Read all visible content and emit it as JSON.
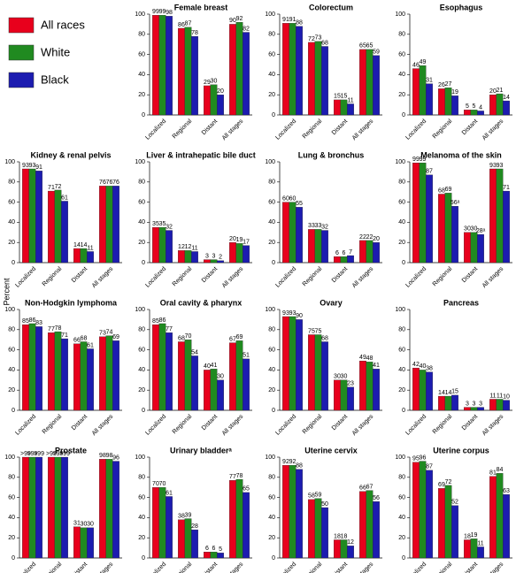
{
  "ylabel": "Percent",
  "chart_data": [
    {
      "type": "bar",
      "title": "Female breast",
      "categories": [
        "Localized",
        "Regional",
        "Distant",
        "All stages"
      ],
      "ylim": [
        0,
        100
      ],
      "yticks": [
        0,
        20,
        40,
        60,
        80,
        100
      ],
      "series": [
        {
          "name": "All races",
          "color": "#e8001c",
          "values": [
            99,
            86,
            29,
            90
          ]
        },
        {
          "name": "White",
          "color": "#208a20",
          "values": [
            99,
            87,
            30,
            92
          ]
        },
        {
          "name": "Black",
          "color": "#1c1cb0",
          "values": [
            98,
            78,
            20,
            82
          ]
        }
      ]
    },
    {
      "type": "bar",
      "title": "Colorectum",
      "categories": [
        "Localized",
        "Regional",
        "Distant",
        "All stages"
      ],
      "ylim": [
        0,
        100
      ],
      "yticks": [
        0,
        20,
        40,
        60,
        80,
        100
      ],
      "series": [
        {
          "color": "#e8001c",
          "values": [
            91,
            72,
            15,
            65
          ]
        },
        {
          "color": "#208a20",
          "values": [
            91,
            73,
            15,
            65
          ]
        },
        {
          "color": "#1c1cb0",
          "values": [
            88,
            68,
            11,
            59
          ]
        }
      ]
    },
    {
      "type": "bar",
      "title": "Esophagus",
      "categories": [
        "Localized",
        "Regional",
        "Distant",
        "All stages"
      ],
      "ylim": [
        0,
        100
      ],
      "yticks": [
        0,
        20,
        40,
        60,
        80,
        100
      ],
      "series": [
        {
          "color": "#e8001c",
          "values": [
            46,
            26,
            5,
            20
          ]
        },
        {
          "color": "#208a20",
          "values": [
            49,
            27,
            5,
            21
          ]
        },
        {
          "color": "#1c1cb0",
          "values": [
            31,
            19,
            4,
            14
          ]
        }
      ]
    },
    {
      "type": "bar",
      "title": "Kidney & renal pelvis",
      "categories": [
        "Localized",
        "Regional",
        "Distant",
        "All stages"
      ],
      "ylim": [
        0,
        100
      ],
      "yticks": [
        0,
        20,
        40,
        60,
        80,
        100
      ],
      "series": [
        {
          "color": "#e8001c",
          "values": [
            93,
            71,
            14,
            76
          ]
        },
        {
          "color": "#208a20",
          "values": [
            93,
            72,
            14,
            76
          ]
        },
        {
          "color": "#1c1cb0",
          "values": [
            91,
            61,
            11,
            76
          ]
        }
      ]
    },
    {
      "type": "bar",
      "title": "Liver & intrahepatic bile duct",
      "categories": [
        "Localized",
        "Regional",
        "Distant",
        "All stages"
      ],
      "ylim": [
        0,
        100
      ],
      "yticks": [
        0,
        20,
        40,
        60,
        80,
        100
      ],
      "series": [
        {
          "color": "#e8001c",
          "values": [
            35,
            12,
            3,
            20
          ]
        },
        {
          "color": "#208a20",
          "values": [
            35,
            12,
            3,
            19
          ]
        },
        {
          "color": "#1c1cb0",
          "values": [
            32,
            11,
            2,
            17
          ]
        }
      ]
    },
    {
      "type": "bar",
      "title": "Lung & bronchus",
      "categories": [
        "Localized",
        "Regional",
        "Distant",
        "All stages"
      ],
      "ylim": [
        0,
        100
      ],
      "yticks": [
        0,
        20,
        40,
        60,
        80,
        100
      ],
      "series": [
        {
          "color": "#e8001c",
          "values": [
            60,
            33,
            6,
            22
          ]
        },
        {
          "color": "#208a20",
          "values": [
            60,
            33,
            6,
            22
          ]
        },
        {
          "color": "#1c1cb0",
          "values": [
            55,
            32,
            7,
            20
          ]
        }
      ]
    },
    {
      "type": "bar",
      "title": "Melanoma of the skin",
      "categories": [
        "Localized",
        "Regional",
        "Distant",
        "All stages"
      ],
      "ylim": [
        0,
        100
      ],
      "yticks": [
        0,
        20,
        40,
        60,
        80,
        100
      ],
      "series": [
        {
          "color": "#e8001c",
          "values": [
            99,
            68,
            30,
            93
          ]
        },
        {
          "color": "#208a20",
          "values": [
            99,
            69,
            30,
            93
          ]
        },
        {
          "color": "#1c1cb0",
          "values": [
            87,
            56,
            28,
            71
          ],
          "value_labels": [
            "87",
            "56ᵃ",
            "28ᵃ",
            "71"
          ]
        }
      ]
    },
    {
      "type": "bar",
      "title": "Non-Hodgkin lymphoma",
      "categories": [
        "Localized",
        "Regional",
        "Distant",
        "All stages"
      ],
      "ylim": [
        0,
        100
      ],
      "yticks": [
        0,
        20,
        40,
        60,
        80,
        100
      ],
      "series": [
        {
          "color": "#e8001c",
          "values": [
            85,
            77,
            66,
            73
          ]
        },
        {
          "color": "#208a20",
          "values": [
            86,
            78,
            68,
            74
          ]
        },
        {
          "color": "#1c1cb0",
          "values": [
            83,
            71,
            61,
            69
          ]
        }
      ]
    },
    {
      "type": "bar",
      "title": "Oral cavity & pharynx",
      "categories": [
        "Localized",
        "Regional",
        "Distant",
        "All stages"
      ],
      "ylim": [
        0,
        100
      ],
      "yticks": [
        0,
        20,
        40,
        60,
        80,
        100
      ],
      "series": [
        {
          "color": "#e8001c",
          "values": [
            85,
            68,
            40,
            67
          ]
        },
        {
          "color": "#208a20",
          "values": [
            86,
            70,
            41,
            69
          ]
        },
        {
          "color": "#1c1cb0",
          "values": [
            77,
            54,
            30,
            51
          ]
        }
      ]
    },
    {
      "type": "bar",
      "title": "Ovary",
      "categories": [
        "Localized",
        "Regional",
        "Distant",
        "All stages"
      ],
      "ylim": [
        0,
        100
      ],
      "yticks": [
        0,
        20,
        40,
        60,
        80,
        100
      ],
      "series": [
        {
          "color": "#e8001c",
          "values": [
            93,
            75,
            30,
            49
          ]
        },
        {
          "color": "#208a20",
          "values": [
            93,
            75,
            30,
            48
          ]
        },
        {
          "color": "#1c1cb0",
          "values": [
            90,
            68,
            23,
            41
          ]
        }
      ]
    },
    {
      "type": "bar",
      "title": "Pancreas",
      "categories": [
        "Localized",
        "Regional",
        "Distant",
        "All stages"
      ],
      "ylim": [
        0,
        100
      ],
      "yticks": [
        0,
        20,
        40,
        60,
        80,
        100
      ],
      "series": [
        {
          "color": "#e8001c",
          "values": [
            42,
            14,
            3,
            11
          ]
        },
        {
          "color": "#208a20",
          "values": [
            40,
            14,
            3,
            11
          ]
        },
        {
          "color": "#1c1cb0",
          "values": [
            38,
            15,
            3,
            10
          ]
        }
      ]
    },
    {
      "type": "bar",
      "title": "Prostate",
      "categories": [
        "Localized",
        "Regional",
        "Distant",
        "All stages"
      ],
      "ylim": [
        0,
        100
      ],
      "yticks": [
        0,
        20,
        40,
        60,
        80,
        100
      ],
      "series": [
        {
          "color": "#e8001c",
          "values": [
            100,
            100,
            31,
            98
          ],
          "value_labels": [
            ">99",
            ">99",
            "31",
            "98"
          ]
        },
        {
          "color": "#208a20",
          "values": [
            100,
            100,
            30,
            98
          ],
          "value_labels": [
            ">99",
            ">99",
            "30",
            "98"
          ]
        },
        {
          "color": "#1c1cb0",
          "values": [
            100,
            100,
            30,
            96
          ],
          "value_labels": [
            ">99",
            ">99",
            "30",
            "96"
          ]
        }
      ]
    },
    {
      "type": "bar",
      "title": "Urinary bladderᵃ",
      "categories": [
        "Localized",
        "Regional",
        "Distant",
        "All stages"
      ],
      "ylim": [
        0,
        100
      ],
      "yticks": [
        0,
        20,
        40,
        60,
        80,
        100
      ],
      "series": [
        {
          "color": "#e8001c",
          "values": [
            70,
            38,
            6,
            77
          ]
        },
        {
          "color": "#208a20",
          "values": [
            70,
            39,
            6,
            78
          ]
        },
        {
          "color": "#1c1cb0",
          "values": [
            61,
            28,
            5,
            65
          ]
        }
      ]
    },
    {
      "type": "bar",
      "title": "Uterine cervix",
      "categories": [
        "Localized",
        "Regional",
        "Distant",
        "All stages"
      ],
      "ylim": [
        0,
        100
      ],
      "yticks": [
        0,
        20,
        40,
        60,
        80,
        100
      ],
      "series": [
        {
          "color": "#e8001c",
          "values": [
            92,
            58,
            18,
            66
          ]
        },
        {
          "color": "#208a20",
          "values": [
            92,
            59,
            18,
            67
          ]
        },
        {
          "color": "#1c1cb0",
          "values": [
            88,
            50,
            12,
            56
          ]
        }
      ]
    },
    {
      "type": "bar",
      "title": "Uterine corpus",
      "categories": [
        "Localized",
        "Regional",
        "Distant",
        "All stages"
      ],
      "ylim": [
        0,
        100
      ],
      "yticks": [
        0,
        20,
        40,
        60,
        80,
        100
      ],
      "series": [
        {
          "color": "#e8001c",
          "values": [
            95,
            69,
            18,
            81
          ]
        },
        {
          "color": "#208a20",
          "values": [
            96,
            72,
            19,
            84
          ]
        },
        {
          "color": "#1c1cb0",
          "values": [
            87,
            52,
            11,
            63
          ]
        }
      ]
    }
  ]
}
